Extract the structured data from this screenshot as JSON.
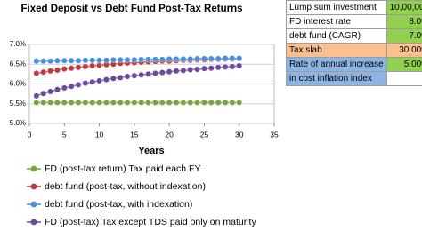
{
  "chart_data": {
    "type": "line",
    "title": "Fixed Deposit vs Debt Fund Post-Tax Returns",
    "x_label": "Years",
    "x": [
      1,
      2,
      3,
      4,
      5,
      6,
      7,
      8,
      9,
      10,
      11,
      12,
      13,
      14,
      15,
      16,
      17,
      18,
      19,
      20,
      21,
      22,
      23,
      24,
      25,
      26,
      27,
      28,
      29,
      30
    ],
    "xlim": [
      0,
      35
    ],
    "xticks": [
      0,
      5,
      10,
      15,
      20,
      25,
      30,
      35
    ],
    "ylim": [
      5.0,
      7.0
    ],
    "yticks": [
      {
        "value": 5.0,
        "label": "5.0%"
      },
      {
        "value": 5.5,
        "label": "5.5%"
      },
      {
        "value": 6.0,
        "label": "6.0%"
      },
      {
        "value": 6.5,
        "label": "6.5%"
      },
      {
        "value": 7.0,
        "label": "7.0%"
      }
    ],
    "grid": true,
    "legend": "bottom",
    "series": [
      {
        "name": "FD (post-tax return) Tax paid each FY",
        "color": "#77a83d",
        "values": [
          5.53,
          5.53,
          5.53,
          5.53,
          5.53,
          5.53,
          5.53,
          5.53,
          5.53,
          5.53,
          5.53,
          5.53,
          5.53,
          5.53,
          5.53,
          5.53,
          5.53,
          5.53,
          5.53,
          5.53,
          5.53,
          5.53,
          5.53,
          5.53,
          5.53,
          5.53,
          5.53,
          5.53,
          5.53,
          5.53
        ]
      },
      {
        "name": "debt fund (post-tax, without indexation)",
        "color": "#c0393b",
        "values": [
          6.27,
          6.3,
          6.33,
          6.35,
          6.38,
          6.4,
          6.42,
          6.44,
          6.46,
          6.47,
          6.49,
          6.5,
          6.52,
          6.53,
          6.54,
          6.55,
          6.56,
          6.57,
          6.58,
          6.58,
          6.59,
          6.6,
          6.6,
          6.61,
          6.61,
          6.62,
          6.62,
          6.63,
          6.63,
          6.64
        ]
      },
      {
        "name": "debt fund (post-tax, with indexation)",
        "color": "#4a90d9",
        "values": [
          6.58,
          6.58,
          6.58,
          6.59,
          6.59,
          6.59,
          6.59,
          6.6,
          6.6,
          6.6,
          6.6,
          6.61,
          6.61,
          6.61,
          6.61,
          6.62,
          6.62,
          6.62,
          6.62,
          6.63,
          6.63,
          6.63,
          6.63,
          6.64,
          6.64,
          6.64,
          6.64,
          6.65,
          6.65,
          6.65
        ]
      },
      {
        "name": "FD (post-tax) Tax except TDS paid only on maturity",
        "color": "#6a4a9c",
        "values": [
          5.7,
          5.76,
          5.81,
          5.86,
          5.9,
          5.94,
          5.98,
          6.02,
          6.05,
          6.08,
          6.11,
          6.14,
          6.16,
          6.19,
          6.21,
          6.23,
          6.25,
          6.27,
          6.29,
          6.31,
          6.33,
          6.34,
          6.36,
          6.37,
          6.39,
          6.4,
          6.42,
          6.43,
          6.44,
          6.46
        ]
      }
    ]
  },
  "table": {
    "rows": [
      [
        "Lump sum investment",
        "10,00,000"
      ],
      [
        "FD interest rate",
        "8.0%"
      ],
      [
        "debt fund (CAGR)",
        "7.0%"
      ],
      [
        "Tax slab",
        "30.00%"
      ],
      [
        "Rate of annual increase",
        "5.00%"
      ],
      [
        "in cost inflation index"
      ]
    ]
  }
}
